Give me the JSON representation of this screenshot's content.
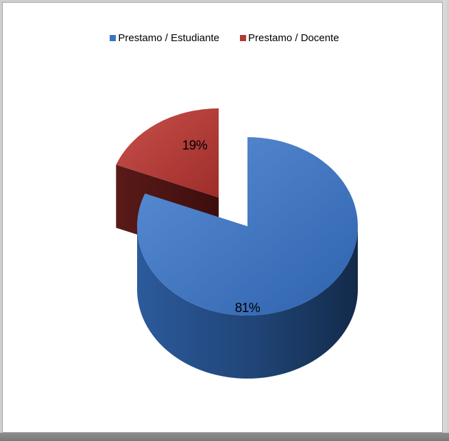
{
  "chart_data": {
    "type": "pie",
    "style": "3d-exploded",
    "title": "",
    "categories": [
      "Prestamo / Estudiante",
      "Prestamo / Docente"
    ],
    "values": [
      81,
      19
    ],
    "data_labels": [
      "81%",
      "19%"
    ],
    "colors": [
      "#3a73c4",
      "#b23a35"
    ],
    "legend_position": "top"
  }
}
